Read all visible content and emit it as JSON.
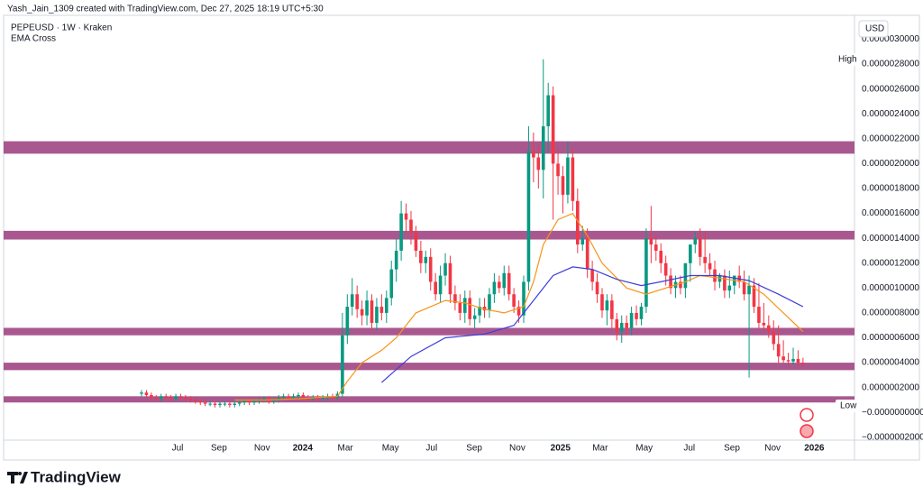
{
  "header": {
    "creator": "Yash_Jain_1309 created with TradingView.com, Dec 27, 2025 18:19 UTC+5:30",
    "symbol": "PEPEUSD · 1W · Kraken",
    "currency": "USD"
  },
  "branding": "TradingView",
  "chart_data": {
    "type": "candlestick",
    "up_color": "#089981",
    "down_color": "#f23645",
    "grid": false,
    "high_label": "High",
    "low_label": "Low",
    "xlim": [
      -28.88,
      145.51
    ],
    "xticks": [
      {
        "value": 7.36,
        "label": "Jul"
      },
      {
        "value": 15.8,
        "label": "Sep"
      },
      {
        "value": 24.6,
        "label": "Nov"
      },
      {
        "value": 32.9,
        "label": "2024"
      },
      {
        "value": 41.6,
        "label": "Mar"
      },
      {
        "value": 50.8,
        "label": "May"
      },
      {
        "value": 59.2,
        "label": "Jul"
      },
      {
        "value": 67.9,
        "label": "Sep"
      },
      {
        "value": 76.7,
        "label": "Nov"
      },
      {
        "value": 85.5,
        "label": "2025"
      },
      {
        "value": 93.6,
        "label": "Mar"
      },
      {
        "value": 102.6,
        "label": "May"
      },
      {
        "value": 111.8,
        "label": "Jul"
      },
      {
        "value": 120.5,
        "label": "Sep"
      },
      {
        "value": 128.8,
        "label": "Nov"
      },
      {
        "value": 137.3,
        "label": "2026"
      }
    ],
    "ylim": [
      -2.23e-07,
      3.04e-06
    ],
    "yticks": [
      {
        "value": 3e-06,
        "label": "0.0000030000"
      },
      {
        "value": 2.8e-06,
        "label": "0.0000028000"
      },
      {
        "value": 2.6e-06,
        "label": "0.0000026000"
      },
      {
        "value": 2.4e-06,
        "label": "0.0000024000"
      },
      {
        "value": 2.2e-06,
        "label": "0.0000022000"
      },
      {
        "value": 2e-06,
        "label": "0.0000020000"
      },
      {
        "value": 1.8e-06,
        "label": "0.0000018000"
      },
      {
        "value": 1.6e-06,
        "label": "0.0000016000"
      },
      {
        "value": 1.4e-06,
        "label": "0.0000014000"
      },
      {
        "value": 1.2e-06,
        "label": "0.0000012000"
      },
      {
        "value": 1e-06,
        "label": "0.0000010000"
      },
      {
        "value": 8e-07,
        "label": "0.0000008000"
      },
      {
        "value": 6e-07,
        "label": "0.0000006000"
      },
      {
        "value": 4e-07,
        "label": "0.0000004000"
      },
      {
        "value": 2e-07,
        "label": "0.0000002000"
      },
      {
        "value": 0,
        "label": "−0.0000000000"
      },
      {
        "value": -2e-07,
        "label": "−0.0000002000"
      }
    ],
    "zones": [
      [
        2.08e-06,
        2.18e-06
      ],
      [
        1.39e-06,
        1.46e-06
      ],
      [
        6.2e-07,
        6.8e-07
      ],
      [
        3.4e-07,
        4e-07
      ],
      [
        8e-08,
        1.3e-07
      ]
    ],
    "zone_color": "#a9588f",
    "candles": {
      "open": [
        1.5e-07,
        1.6e-07,
        1.4e-07,
        1.2e-07,
        1.1e-07,
        1.3e-07,
        1.2e-07,
        1.1e-07,
        1.3e-07,
        1.2e-07,
        1.1e-07,
        1e-07,
        9e-08,
        8e-08,
        7e-08,
        7e-08,
        6e-08,
        7e-08,
        7e-08,
        6e-08,
        7e-08,
        8e-08,
        9e-08,
        8e-08,
        9e-08,
        1e-07,
        1.1e-07,
        9e-08,
        1e-07,
        1.2e-07,
        1.3e-07,
        1.2e-07,
        1.3e-07,
        1.4e-07,
        1.2e-07,
        1.1e-07,
        1.2e-07,
        1.1e-07,
        1.2e-07,
        1.3e-07,
        1.2e-07,
        1.5e-07,
        6.2e-07,
        8.5e-07,
        9.5e-07,
        8.3e-07,
        7.8e-07,
        9e-07,
        7.2e-07,
        8.5e-07,
        8e-07,
        9.2e-07,
        1.15e-06,
        1.3e-06,
        1.6e-06,
        1.55e-06,
        1.45e-06,
        1.3e-06,
        1.2e-06,
        1.25e-06,
        1.05e-06,
        9.5e-07,
        1.1e-06,
        1.2e-06,
        9.5e-07,
        8.8e-07,
        8e-07,
        9.2e-07,
        7.5e-07,
        7.8e-07,
        8.5e-07,
        8.2e-07,
        9.5e-07,
        1.05e-06,
        1e-06,
        1.12e-06,
        9.5e-07,
        8.5e-07,
        7.8e-07,
        1.05e-06,
        2.1e-06,
        2.05e-06,
        1.95e-06,
        2.3e-06,
        2.55e-06,
        2e-06,
        1.9e-06,
        1.75e-06,
        2.05e-06,
        1.7e-06,
        1.35e-06,
        1.4e-06,
        1.15e-06,
        1.05e-06,
        9.5e-07,
        8.2e-07,
        9e-07,
        7.5e-07,
        6.5e-07,
        7.2e-07,
        6.8e-07,
        8e-07,
        7.5e-07,
        8.5e-07,
        1.4e-06,
        1.35e-06,
        1.3e-06,
        1.2e-06,
        1.1e-06,
        1e-06,
        1.05e-06,
        1e-06,
        1.2e-06,
        1.35e-06,
        1.4e-06,
        1.25e-06,
        1.2e-06,
        1.15e-06,
        1.05e-06,
        1.1e-06,
        9.8e-07,
        1.02e-06,
        1.1e-06,
        1.05e-06,
        9.5e-07,
        1.02e-06,
        8.5e-07,
        7.2e-07,
        7e-07,
        6.5e-07,
        5.5e-07,
        4.5e-07,
        4.2e-07,
        4.1e-07,
        4.3e-07,
        4e-07
      ],
      "high": [
        1.8e-07,
        1.8e-07,
        1.6e-07,
        1.4e-07,
        1.5e-07,
        1.5e-07,
        1.4e-07,
        1.5e-07,
        1.5e-07,
        1.4e-07,
        1.3e-07,
        1.2e-07,
        1.1e-07,
        1e-07,
        9e-08,
        9e-08,
        9e-08,
        9e-08,
        9e-08,
        9e-08,
        1e-07,
        1.1e-07,
        1.1e-07,
        1.1e-07,
        1.2e-07,
        1.3e-07,
        1.3e-07,
        1.2e-07,
        1.4e-07,
        1.5e-07,
        1.5e-07,
        1.5e-07,
        1.6e-07,
        1.6e-07,
        1.4e-07,
        1.4e-07,
        1.4e-07,
        1.4e-07,
        1.5e-07,
        1.5e-07,
        1.7e-07,
        8e-07,
        9.5e-07,
        1.08e-06,
        1.02e-06,
        9e-07,
        9.8e-07,
        9.5e-07,
        9.2e-07,
        9.5e-07,
        9.8e-07,
        1.22e-06,
        1.4e-06,
        1.7e-06,
        1.68e-06,
        1.62e-06,
        1.5e-06,
        1.38e-06,
        1.3e-06,
        1.32e-06,
        1.12e-06,
        1.18e-06,
        1.28e-06,
        1.26e-06,
        1.02e-06,
        9.5e-07,
        9.8e-07,
        9.8e-07,
        8.4e-07,
        9.2e-07,
        9.2e-07,
        1e-06,
        1.12e-06,
        1.1e-06,
        1.18e-06,
        1.18e-06,
        1e-06,
        9e-07,
        1.1e-06,
        2.3e-06,
        2.25e-06,
        2.15e-06,
        2.84e-06,
        2.65e-06,
        2.62e-06,
        2.12e-06,
        1.98e-06,
        2.18e-06,
        2.12e-06,
        1.8e-06,
        1.5e-06,
        1.48e-06,
        1.22e-06,
        1.12e-06,
        1e-06,
        9.5e-07,
        9.5e-07,
        8e-07,
        7.8e-07,
        7.8e-07,
        8.5e-07,
        8.6e-07,
        8.8e-07,
        1.48e-06,
        1.66e-06,
        1.42e-06,
        1.36e-06,
        1.26e-06,
        1.16e-06,
        1.1e-06,
        1.1e-06,
        1.08e-06,
        1.3e-06,
        1.45e-06,
        1.48e-06,
        1.45e-06,
        1.28e-06,
        1.22e-06,
        1.12e-06,
        1.15e-06,
        1.14e-06,
        1.08e-06,
        1.18e-06,
        1.14e-06,
        1.1e-06,
        1.08e-06,
        1.04e-06,
        8.8e-07,
        7.8e-07,
        7.4e-07,
        7e-07,
        5.8e-07,
        4.8e-07,
        5.2e-07,
        5e-07,
        4.4e-07
      ],
      "low": [
        1.3e-07,
        1.2e-07,
        1e-07,
        9e-08,
        9e-08,
        1e-07,
        9e-08,
        9e-08,
        1e-07,
        9e-08,
        8e-08,
        7e-08,
        6e-08,
        5e-08,
        5e-08,
        4e-08,
        4e-08,
        5e-08,
        4e-08,
        4e-08,
        5e-08,
        6e-08,
        6e-08,
        6e-08,
        7e-08,
        8e-08,
        7e-08,
        7e-08,
        8e-08,
        1e-07,
        1e-07,
        1e-07,
        1.1e-07,
        1e-07,
        9e-08,
        9e-08,
        9e-08,
        9e-08,
        1e-07,
        1e-07,
        1e-07,
        1.2e-07,
        5.5e-07,
        7.8e-07,
        7.6e-07,
        7e-07,
        7e-07,
        6.6e-07,
        6.6e-07,
        7.4e-07,
        7.2e-07,
        8.6e-07,
        1.05e-06,
        1.22e-06,
        1.45e-06,
        1.35e-06,
        1.25e-06,
        1.12e-06,
        1.12e-06,
        9.8e-07,
        9e-07,
        8.8e-07,
        1.02e-06,
        8.8e-07,
        8.2e-07,
        7.4e-07,
        7.2e-07,
        7e-07,
        6.8e-07,
        7.2e-07,
        7.6e-07,
        7.6e-07,
        8.8e-07,
        9.6e-07,
        9.4e-07,
        9e-07,
        8e-07,
        7.2e-07,
        7.2e-07,
        9.8e-07,
        1.85e-06,
        1.8e-06,
        1.72e-06,
        2.1e-06,
        1.55e-06,
        1.75e-06,
        1.6e-06,
        1.68e-06,
        1.62e-06,
        1.28e-06,
        1.3e-06,
        1.08e-06,
        9.8e-07,
        8.8e-07,
        7.6e-07,
        7e-07,
        6.8e-07,
        5.8e-07,
        5.6e-07,
        6.2e-07,
        6.2e-07,
        7e-07,
        7e-07,
        8e-07,
        1.2e-06,
        1.22e-06,
        1.12e-06,
        1.02e-06,
        9.5e-07,
        9.2e-07,
        9.5e-07,
        9.2e-07,
        1.05e-06,
        1.28e-06,
        1.18e-06,
        1.12e-06,
        1.1e-06,
        9.8e-07,
        1e-06,
        9.2e-07,
        9.2e-07,
        9.5e-07,
        1e-06,
        9e-07,
        2.8e-07,
        8e-07,
        6.8e-07,
        6.6e-07,
        6e-07,
        5e-07,
        4e-07,
        4e-07,
        3.8e-07,
        3.8e-07,
        3.7e-07,
        3.7e-07
      ],
      "close": [
        1.6e-07,
        1.4e-07,
        1.2e-07,
        1.1e-07,
        1.3e-07,
        1.2e-07,
        1.1e-07,
        1.3e-07,
        1.2e-07,
        1.1e-07,
        1e-07,
        9e-08,
        8e-08,
        7e-08,
        7e-08,
        6e-08,
        7e-08,
        7e-08,
        6e-08,
        7e-08,
        8e-08,
        9e-08,
        8e-08,
        9e-08,
        1e-07,
        1.1e-07,
        9e-08,
        1e-07,
        1.2e-07,
        1.3e-07,
        1.2e-07,
        1.3e-07,
        1.4e-07,
        1.2e-07,
        1.1e-07,
        1.2e-07,
        1.1e-07,
        1.2e-07,
        1.3e-07,
        1.2e-07,
        1.5e-07,
        6.2e-07,
        8.5e-07,
        9.5e-07,
        8.3e-07,
        7.8e-07,
        9e-07,
        7.2e-07,
        8.5e-07,
        8e-07,
        9.2e-07,
        1.15e-06,
        1.3e-06,
        1.6e-06,
        1.55e-06,
        1.45e-06,
        1.3e-06,
        1.2e-06,
        1.25e-06,
        1.05e-06,
        9.5e-07,
        1.1e-06,
        1.2e-06,
        9.5e-07,
        8.8e-07,
        8e-07,
        9.2e-07,
        7.5e-07,
        7.8e-07,
        8.5e-07,
        8.2e-07,
        9.5e-07,
        1.05e-06,
        1e-06,
        1.12e-06,
        9.5e-07,
        8.5e-07,
        7.8e-07,
        1.05e-06,
        2.1e-06,
        2.05e-06,
        1.95e-06,
        2.3e-06,
        2.55e-06,
        2e-06,
        1.9e-06,
        1.75e-06,
        2.05e-06,
        1.7e-06,
        1.35e-06,
        1.4e-06,
        1.15e-06,
        1.05e-06,
        9.5e-07,
        8.2e-07,
        9e-07,
        7.5e-07,
        6.5e-07,
        7.2e-07,
        6.8e-07,
        8e-07,
        7.5e-07,
        8.5e-07,
        1.4e-06,
        1.35e-06,
        1.3e-06,
        1.2e-06,
        1.1e-06,
        1e-06,
        1.05e-06,
        1e-06,
        1.2e-06,
        1.35e-06,
        1.4e-06,
        1.25e-06,
        1.2e-06,
        1.15e-06,
        1.05e-06,
        1.1e-06,
        9.8e-07,
        1.02e-06,
        1.1e-06,
        1.05e-06,
        9.5e-07,
        1.02e-06,
        8.5e-07,
        7.2e-07,
        7e-07,
        6.5e-07,
        5.5e-07,
        4.5e-07,
        4.2e-07,
        4.1e-07,
        4.3e-07,
        4e-07,
        3.9e-07
      ]
    },
    "indicator": {
      "name": "EMA Cross",
      "lines": [
        {
          "color": "#f7931a",
          "x": [
            19,
            25,
            32,
            40,
            42,
            45,
            49,
            52,
            56,
            62,
            66,
            70,
            74,
            78,
            80,
            82,
            85,
            88,
            91,
            94,
            99,
            103,
            107,
            111,
            114,
            118,
            123,
            127,
            131,
            135
          ],
          "values": [
            1e-07,
            1e-07,
            1.1e-07,
            1.3e-07,
            2.5e-07,
            4e-07,
            5e-07,
            6e-07,
            8e-07,
            9e-07,
            8.8e-07,
            8.3e-07,
            8e-07,
            8.5e-07,
            1.05e-06,
            1.35e-06,
            1.55e-06,
            1.6e-06,
            1.42e-06,
            1.2e-06,
            1e-06,
            9.5e-07,
            1e-06,
            1.05e-06,
            1.1e-06,
            1.08e-06,
            1.05e-06,
            9.5e-07,
            8e-07,
            6.5e-07
          ]
        },
        {
          "color": "#3d3dd9",
          "x": [
            49,
            55,
            62,
            70,
            76,
            80,
            84,
            88,
            92,
            97,
            102,
            106,
            112,
            118,
            124,
            130,
            135
          ],
          "values": [
            2.4e-07,
            4.5e-07,
            6e-07,
            6.3e-07,
            7e-07,
            9e-07,
            1.1e-06,
            1.17e-06,
            1.15e-06,
            1.07e-06,
            1.02e-06,
            1.05e-06,
            1.1e-06,
            1.1e-06,
            1.06e-06,
            9.5e-07,
            8.5e-07
          ]
        }
      ]
    }
  }
}
